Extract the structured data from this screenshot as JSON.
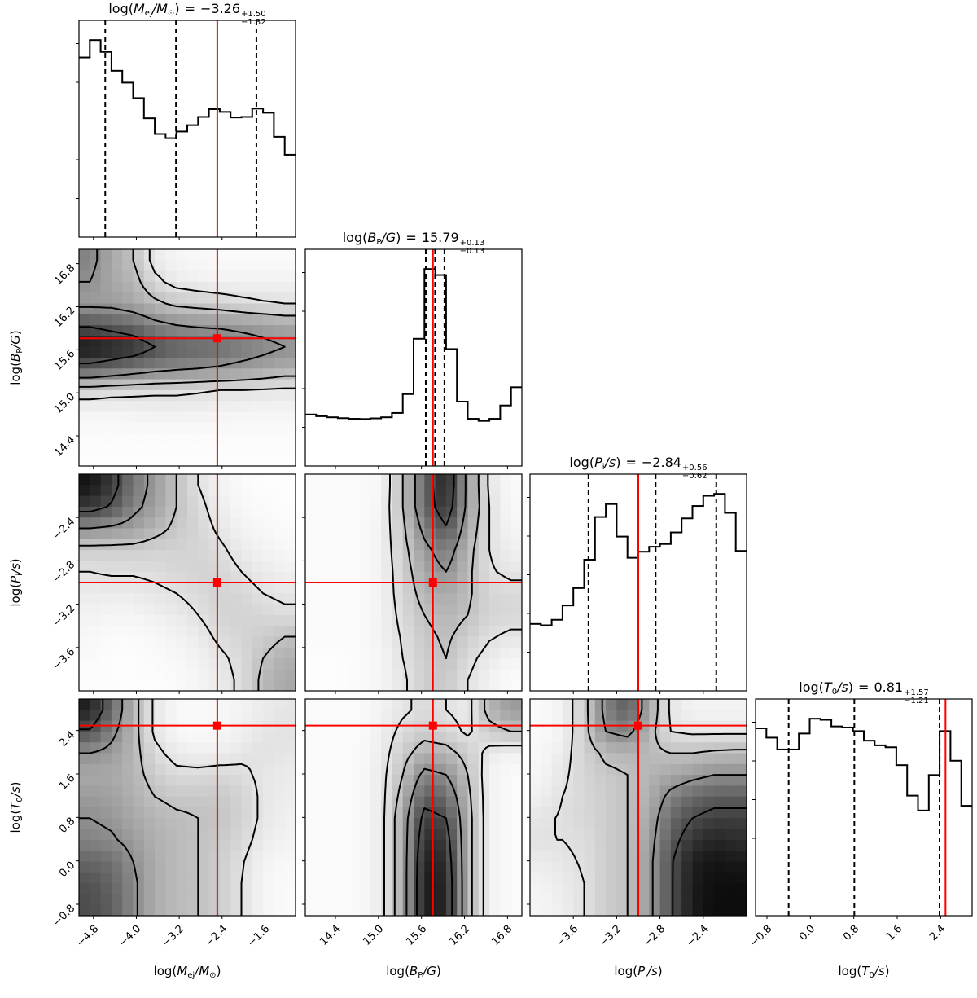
{
  "chart_data": {
    "type": "heatmap",
    "title_sep": "=",
    "params": [
      {
        "label": {
          "pre": "log(",
          "sym": "M",
          "sub": "ej",
          "post": "/M",
          "post_sub": "⊙",
          "end": ")"
        },
        "summary": {
          "median": "−3.26",
          "plus": "+1.50",
          "minus": "−1.32"
        },
        "range": [
          -5.07,
          -1.03
        ],
        "ticks": [
          -4.8,
          -4.0,
          -3.2,
          -2.4,
          -1.6
        ],
        "tick_labels": [
          "−4.8",
          "−4.0",
          "−3.2",
          "−2.4",
          "−1.6"
        ],
        "truth": -2.49,
        "quantiles": [
          -4.58,
          -3.26,
          -1.76
        ],
        "hist": [
          650,
          713,
          670,
          602,
          559,
          503,
          430,
          373,
          358,
          382,
          405,
          435,
          463,
          453,
          433,
          435,
          465,
          450,
          363,
          298
        ]
      },
      {
        "label": {
          "pre": "log(",
          "sym": "B",
          "sub": "P",
          "post": "/G",
          "post_sub": "",
          "end": ")"
        },
        "summary": {
          "median": "15.79",
          "plus": "+0.13",
          "minus": "−0.13"
        },
        "range": [
          13.98,
          17.0
        ],
        "ticks": [
          14.4,
          15.0,
          15.6,
          16.2,
          16.8
        ],
        "tick_labels": [
          "14.4",
          "15.0",
          "15.6",
          "16.2",
          "16.8"
        ],
        "truth": 15.76,
        "quantiles": [
          15.66,
          15.79,
          15.92
        ],
        "hist": [
          240,
          232,
          227,
          223,
          220,
          219,
          222,
          227,
          247,
          335,
          593,
          918,
          890,
          545,
          300,
          220,
          210,
          220,
          282,
          367
        ]
      },
      {
        "label": {
          "pre": "log(",
          "sym": "P",
          "sub": "i",
          "post": "/s",
          "post_sub": "",
          "end": ")"
        },
        "summary": {
          "median": "−2.84",
          "plus": "+0.56",
          "minus": "−0.62"
        },
        "range": [
          -4.0,
          -2.0
        ],
        "ticks": [
          -3.6,
          -3.2,
          -2.8,
          -2.4
        ],
        "tick_labels": [
          "−3.6",
          "−3.2",
          "−2.8",
          "−2.4"
        ],
        "truth": -3.0,
        "quantiles": [
          -3.46,
          -2.84,
          -2.28
        ],
        "hist": [
          243,
          238,
          258,
          310,
          373,
          476,
          631,
          678,
          560,
          483,
          505,
          523,
          533,
          575,
          626,
          671,
          708,
          715,
          646,
          508
        ]
      },
      {
        "label": {
          "pre": "log(",
          "sym": "T",
          "sub": "0",
          "post": "/s",
          "post_sub": "",
          "end": ")"
        },
        "summary": {
          "median": "0.81",
          "plus": "+1.57",
          "minus": "−1.21"
        },
        "range": [
          -1.01,
          2.98
        ],
        "ticks": [
          -0.8,
          0.0,
          0.8,
          1.6,
          2.4
        ],
        "tick_labels": [
          "−0.8",
          "0.0",
          "0.8",
          "1.6",
          "2.4"
        ],
        "truth": 2.49,
        "quantiles": [
          -0.4,
          0.81,
          2.38
        ],
        "hist": [
          682,
          648,
          605,
          605,
          663,
          717,
          713,
          689,
          685,
          672,
          637,
          620,
          613,
          548,
          437,
          383,
          512,
          672,
          564,
          400
        ]
      }
    ],
    "pairs": [
      {
        "x": 0,
        "y": 1,
        "density": [
          [
            0.5,
            0.35,
            0.25,
            0.08,
            0.04,
            0.03,
            0.02,
            0.02,
            0.02,
            0.02
          ],
          [
            0.45,
            0.35,
            0.3,
            0.15,
            0.08,
            0.06,
            0.05,
            0.05,
            0.05,
            0.05
          ],
          [
            0.4,
            0.4,
            0.35,
            0.28,
            0.22,
            0.2,
            0.18,
            0.15,
            0.13,
            0.12
          ],
          [
            0.7,
            0.65,
            0.6,
            0.5,
            0.45,
            0.43,
            0.42,
            0.4,
            0.38,
            0.35
          ],
          [
            0.95,
            0.9,
            0.85,
            0.72,
            0.65,
            0.62,
            0.6,
            0.55,
            0.5,
            0.45
          ],
          [
            0.65,
            0.6,
            0.55,
            0.5,
            0.47,
            0.45,
            0.43,
            0.4,
            0.37,
            0.33
          ],
          [
            0.18,
            0.16,
            0.15,
            0.14,
            0.14,
            0.13,
            0.12,
            0.12,
            0.11,
            0.1
          ],
          [
            0.04,
            0.04,
            0.05,
            0.06,
            0.06,
            0.06,
            0.05,
            0.04,
            0.04,
            0.04
          ],
          [
            0.02,
            0.02,
            0.02,
            0.02,
            0.02,
            0.02,
            0.02,
            0.02,
            0.02,
            0.02
          ],
          [
            0.01,
            0.01,
            0.01,
            0.01,
            0.01,
            0.01,
            0.01,
            0.01,
            0.01,
            0.01
          ]
        ]
      },
      {
        "x": 0,
        "y": 2,
        "density": [
          [
            0.95,
            0.8,
            0.55,
            0.4,
            0.25,
            0.12,
            0.05,
            0.02,
            0.01,
            0.01
          ],
          [
            0.8,
            0.7,
            0.5,
            0.38,
            0.25,
            0.15,
            0.07,
            0.03,
            0.02,
            0.01
          ],
          [
            0.45,
            0.42,
            0.38,
            0.3,
            0.22,
            0.17,
            0.1,
            0.05,
            0.03,
            0.02
          ],
          [
            0.2,
            0.2,
            0.2,
            0.18,
            0.18,
            0.17,
            0.14,
            0.08,
            0.05,
            0.03
          ],
          [
            0.12,
            0.13,
            0.13,
            0.14,
            0.16,
            0.18,
            0.17,
            0.12,
            0.08,
            0.06
          ],
          [
            0.08,
            0.08,
            0.08,
            0.1,
            0.12,
            0.15,
            0.18,
            0.16,
            0.12,
            0.1
          ],
          [
            0.05,
            0.04,
            0.04,
            0.06,
            0.08,
            0.12,
            0.17,
            0.18,
            0.16,
            0.14
          ],
          [
            0.03,
            0.02,
            0.02,
            0.03,
            0.05,
            0.08,
            0.14,
            0.17,
            0.2,
            0.25
          ],
          [
            0.02,
            0.01,
            0.01,
            0.02,
            0.03,
            0.05,
            0.1,
            0.15,
            0.25,
            0.32
          ],
          [
            0.01,
            0.01,
            0.01,
            0.01,
            0.02,
            0.04,
            0.08,
            0.14,
            0.28,
            0.35
          ]
        ]
      },
      {
        "x": 1,
        "y": 2,
        "density": [
          [
            0.02,
            0.02,
            0.02,
            0.03,
            0.25,
            0.6,
            0.9,
            0.4,
            0.1,
            0.02
          ],
          [
            0.02,
            0.02,
            0.02,
            0.04,
            0.25,
            0.6,
            0.85,
            0.4,
            0.12,
            0.03
          ],
          [
            0.02,
            0.02,
            0.02,
            0.05,
            0.22,
            0.5,
            0.7,
            0.35,
            0.12,
            0.04
          ],
          [
            0.02,
            0.02,
            0.02,
            0.05,
            0.2,
            0.4,
            0.55,
            0.3,
            0.12,
            0.06
          ],
          [
            0.02,
            0.02,
            0.02,
            0.05,
            0.18,
            0.35,
            0.45,
            0.28,
            0.13,
            0.1
          ],
          [
            0.02,
            0.02,
            0.02,
            0.05,
            0.17,
            0.3,
            0.35,
            0.27,
            0.17,
            0.15
          ],
          [
            0.02,
            0.02,
            0.02,
            0.05,
            0.15,
            0.25,
            0.3,
            0.25,
            0.17,
            0.16
          ],
          [
            0.02,
            0.02,
            0.02,
            0.05,
            0.13,
            0.22,
            0.27,
            0.2,
            0.13,
            0.1
          ],
          [
            0.01,
            0.01,
            0.02,
            0.04,
            0.12,
            0.2,
            0.25,
            0.15,
            0.08,
            0.04
          ],
          [
            0.01,
            0.01,
            0.02,
            0.04,
            0.1,
            0.2,
            0.22,
            0.12,
            0.05,
            0.02
          ]
        ]
      },
      {
        "x": 0,
        "y": 3,
        "density": [
          [
            0.9,
            0.6,
            0.3,
            0.1,
            0.03,
            0.02,
            0.03,
            0.05,
            0.08,
            0.1
          ],
          [
            0.7,
            0.5,
            0.3,
            0.1,
            0.03,
            0.02,
            0.03,
            0.06,
            0.1,
            0.12
          ],
          [
            0.45,
            0.4,
            0.3,
            0.15,
            0.08,
            0.06,
            0.07,
            0.1,
            0.12,
            0.1
          ],
          [
            0.35,
            0.35,
            0.3,
            0.2,
            0.15,
            0.15,
            0.16,
            0.14,
            0.1,
            0.08
          ],
          [
            0.4,
            0.38,
            0.32,
            0.25,
            0.22,
            0.22,
            0.22,
            0.18,
            0.1,
            0.07
          ],
          [
            0.45,
            0.42,
            0.35,
            0.3,
            0.27,
            0.25,
            0.24,
            0.18,
            0.1,
            0.06
          ],
          [
            0.5,
            0.47,
            0.4,
            0.32,
            0.28,
            0.25,
            0.22,
            0.16,
            0.08,
            0.05
          ],
          [
            0.62,
            0.58,
            0.45,
            0.33,
            0.28,
            0.25,
            0.2,
            0.13,
            0.05,
            0.03
          ],
          [
            0.7,
            0.62,
            0.48,
            0.33,
            0.28,
            0.25,
            0.2,
            0.12,
            0.04,
            0.02
          ],
          [
            0.72,
            0.65,
            0.48,
            0.33,
            0.28,
            0.25,
            0.2,
            0.12,
            0.04,
            0.02
          ]
        ]
      },
      {
        "x": 1,
        "y": 3,
        "density": [
          [
            0.02,
            0.02,
            0.02,
            0.05,
            0.1,
            0.15,
            0.12,
            0.08,
            0.3,
            0.4
          ],
          [
            0.02,
            0.02,
            0.02,
            0.06,
            0.15,
            0.2,
            0.17,
            0.1,
            0.2,
            0.25
          ],
          [
            0.02,
            0.02,
            0.02,
            0.07,
            0.2,
            0.32,
            0.3,
            0.2,
            0.08,
            0.05
          ],
          [
            0.02,
            0.02,
            0.02,
            0.08,
            0.25,
            0.5,
            0.45,
            0.25,
            0.05,
            0.02
          ],
          [
            0.02,
            0.02,
            0.02,
            0.08,
            0.3,
            0.65,
            0.6,
            0.28,
            0.05,
            0.02
          ],
          [
            0.02,
            0.02,
            0.02,
            0.08,
            0.35,
            0.78,
            0.72,
            0.3,
            0.05,
            0.02
          ],
          [
            0.02,
            0.02,
            0.02,
            0.08,
            0.35,
            0.85,
            0.8,
            0.3,
            0.05,
            0.02
          ],
          [
            0.02,
            0.02,
            0.02,
            0.08,
            0.35,
            0.9,
            0.85,
            0.3,
            0.05,
            0.02
          ],
          [
            0.02,
            0.02,
            0.02,
            0.08,
            0.35,
            0.92,
            0.88,
            0.3,
            0.05,
            0.02
          ],
          [
            0.02,
            0.02,
            0.02,
            0.08,
            0.35,
            0.92,
            0.88,
            0.3,
            0.05,
            0.02
          ]
        ]
      },
      {
        "x": 2,
        "y": 3,
        "density": [
          [
            0.02,
            0.05,
            0.2,
            0.5,
            0.65,
            0.35,
            0.1,
            0.05,
            0.05,
            0.05
          ],
          [
            0.02,
            0.05,
            0.2,
            0.45,
            0.5,
            0.3,
            0.12,
            0.1,
            0.1,
            0.1
          ],
          [
            0.03,
            0.08,
            0.18,
            0.28,
            0.3,
            0.28,
            0.25,
            0.25,
            0.27,
            0.28
          ],
          [
            0.04,
            0.1,
            0.17,
            0.22,
            0.25,
            0.3,
            0.35,
            0.4,
            0.45,
            0.45
          ],
          [
            0.06,
            0.12,
            0.16,
            0.2,
            0.25,
            0.32,
            0.5,
            0.6,
            0.65,
            0.65
          ],
          [
            0.1,
            0.13,
            0.16,
            0.2,
            0.25,
            0.35,
            0.6,
            0.72,
            0.78,
            0.78
          ],
          [
            0.12,
            0.12,
            0.14,
            0.2,
            0.25,
            0.38,
            0.65,
            0.82,
            0.88,
            0.85
          ],
          [
            0.08,
            0.1,
            0.13,
            0.2,
            0.25,
            0.4,
            0.7,
            0.9,
            0.95,
            0.93
          ],
          [
            0.05,
            0.08,
            0.12,
            0.2,
            0.25,
            0.4,
            0.7,
            0.92,
            0.97,
            0.97
          ],
          [
            0.04,
            0.07,
            0.12,
            0.2,
            0.25,
            0.4,
            0.7,
            0.92,
            0.98,
            0.98
          ]
        ]
      }
    ],
    "colors": {
      "truth": "#ff0000",
      "lines": "#000000"
    },
    "grid": false
  }
}
